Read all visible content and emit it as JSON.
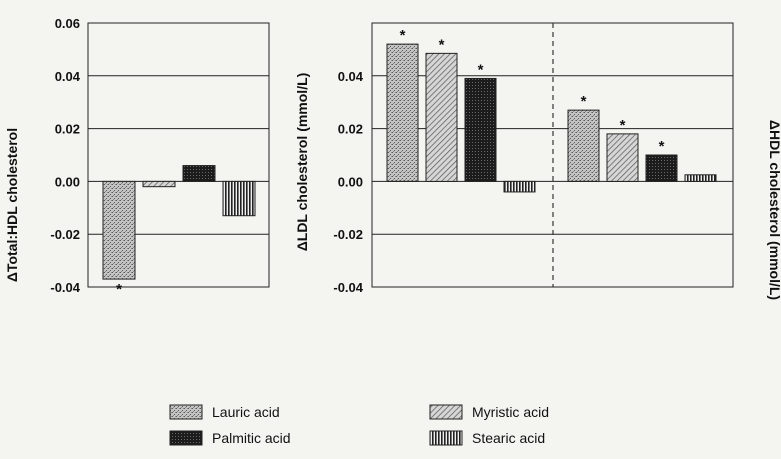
{
  "chart_data": [
    {
      "type": "bar",
      "title": "",
      "xlabel": "",
      "ylabel": "ΔTotal:HDL cholesterol",
      "ylim": [
        -0.04,
        0.06
      ],
      "yticks": [
        "-0.04",
        "-0.02",
        "0.00",
        "0.02",
        "0.04",
        "0.06"
      ],
      "grid": true,
      "categories": [
        "Lauric acid",
        "Myristic acid",
        "Palmitic acid",
        "Stearic acid"
      ],
      "values": [
        -0.037,
        -0.002,
        0.006,
        -0.013
      ],
      "significant": [
        true,
        false,
        false,
        false
      ]
    },
    {
      "type": "bar",
      "title": "",
      "xlabel": "",
      "ylabel": "ΔLDL cholesterol (mmol/L)",
      "ylim": [
        -0.04,
        0.06
      ],
      "yticks": [
        "-0.04",
        "-0.02",
        "0.00",
        "0.02",
        "0.04"
      ],
      "grid": true,
      "categories": [
        "Lauric acid",
        "Myristic acid",
        "Palmitic acid",
        "Stearic acid"
      ],
      "values": [
        0.052,
        0.0485,
        0.039,
        -0.004
      ],
      "significant": [
        true,
        true,
        true,
        false
      ]
    },
    {
      "type": "bar",
      "title": "",
      "xlabel": "",
      "ylabel": "ΔHDL cholesterol (mmol/L)",
      "ylim": [
        -0.04,
        0.06
      ],
      "shares_axis_with_previous": true,
      "grid": true,
      "categories": [
        "Lauric acid",
        "Myristic acid",
        "Palmitic acid",
        "Stearic acid"
      ],
      "values": [
        0.027,
        0.018,
        0.01,
        0.0025
      ],
      "significant": [
        true,
        true,
        true,
        false
      ]
    }
  ],
  "star_symbol": "*",
  "legend": {
    "placement": "bottom",
    "items": [
      {
        "label": "Lauric acid",
        "pattern": "speckled"
      },
      {
        "label": "Myristic acid",
        "pattern": "diagonal-hatch"
      },
      {
        "label": "Palmitic acid",
        "pattern": "dark-crosshatch"
      },
      {
        "label": "Stearic acid",
        "pattern": "vertical-stripes"
      }
    ]
  }
}
